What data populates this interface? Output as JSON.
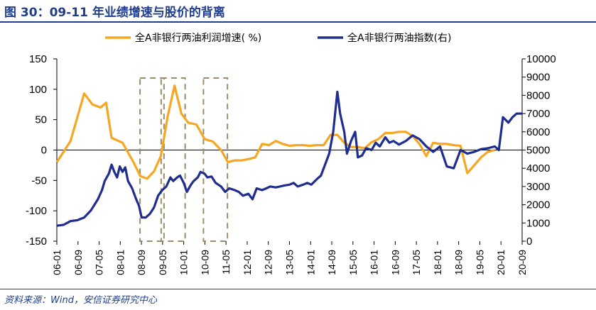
{
  "title": "图 30：09-11 年业绩增速与股价的背离",
  "source": "资料来源：Wind，安信证券研究中心",
  "chart_data": {
    "type": "line",
    "x": [
      "06-01",
      "06-09",
      "07-05",
      "08-01",
      "08-09",
      "09-05",
      "10-01",
      "10-09",
      "11-05",
      "12-01",
      "12-09",
      "13-05",
      "14-01",
      "14-09",
      "15-05",
      "16-01",
      "16-09",
      "17-05",
      "18-01",
      "18-09",
      "19-05",
      "20-01",
      "20-09"
    ],
    "series": [
      {
        "name": "全A非银行两油利润增速( %)",
        "axis": "left",
        "color": "#f5a623",
        "points": [
          [
            0.0,
            -20
          ],
          [
            1.0,
            15
          ],
          [
            2.0,
            93
          ],
          [
            2.6,
            75
          ],
          [
            3.2,
            70
          ],
          [
            3.6,
            78
          ],
          [
            4.0,
            20
          ],
          [
            4.8,
            12
          ],
          [
            5.6,
            -20
          ],
          [
            6.1,
            -43
          ],
          [
            6.6,
            -47
          ],
          [
            7.1,
            -35
          ],
          [
            7.6,
            -10
          ],
          [
            8.1,
            55
          ],
          [
            8.6,
            106
          ],
          [
            9.1,
            60
          ],
          [
            9.6,
            45
          ],
          [
            10.2,
            42
          ],
          [
            10.8,
            18
          ],
          [
            11.4,
            14
          ],
          [
            12.0,
            0
          ],
          [
            12.5,
            -20
          ],
          [
            13.0,
            -17
          ],
          [
            13.5,
            -17
          ],
          [
            14.0,
            -15
          ],
          [
            14.5,
            -12
          ],
          [
            15.0,
            10
          ],
          [
            15.5,
            8
          ],
          [
            16.0,
            15
          ],
          [
            16.5,
            10
          ],
          [
            17.0,
            7
          ],
          [
            17.5,
            8
          ],
          [
            18.0,
            8
          ],
          [
            18.5,
            7
          ],
          [
            19.0,
            8
          ],
          [
            19.5,
            8
          ],
          [
            20.0,
            25
          ],
          [
            20.5,
            25
          ],
          [
            21.0,
            12
          ],
          [
            21.5,
            5
          ],
          [
            22.0,
            5
          ],
          [
            22.5,
            3
          ],
          [
            23.0,
            13
          ],
          [
            23.5,
            18
          ],
          [
            24.0,
            28
          ],
          [
            24.5,
            28
          ],
          [
            25.0,
            30
          ],
          [
            25.5,
            30
          ],
          [
            26.0,
            23
          ],
          [
            26.5,
            10
          ],
          [
            27.0,
            -10
          ],
          [
            27.5,
            12
          ],
          [
            28.0,
            10
          ],
          [
            28.5,
            10
          ],
          [
            29.0,
            8
          ],
          [
            29.5,
            7
          ],
          [
            30.0,
            -38
          ],
          [
            30.5,
            -25
          ],
          [
            31.0,
            -12
          ],
          [
            31.5,
            -3
          ],
          [
            32.0,
            0
          ]
        ]
      },
      {
        "name": "全A非银行两油指数(右)",
        "axis": "right",
        "color": "#1f2d8f",
        "points": [
          [
            0.0,
            850
          ],
          [
            0.5,
            900
          ],
          [
            1.0,
            1100
          ],
          [
            1.5,
            1150
          ],
          [
            2.0,
            1300
          ],
          [
            2.5,
            1700
          ],
          [
            3.0,
            2300
          ],
          [
            3.3,
            2800
          ],
          [
            3.5,
            3300
          ],
          [
            3.8,
            3700
          ],
          [
            4.0,
            4200
          ],
          [
            4.2,
            3800
          ],
          [
            4.4,
            3500
          ],
          [
            4.6,
            4100
          ],
          [
            4.8,
            3800
          ],
          [
            5.0,
            4050
          ],
          [
            5.2,
            3300
          ],
          [
            5.5,
            2900
          ],
          [
            5.8,
            2300
          ],
          [
            6.0,
            1950
          ],
          [
            6.2,
            1300
          ],
          [
            6.5,
            1300
          ],
          [
            6.8,
            1500
          ],
          [
            7.1,
            1850
          ],
          [
            7.4,
            2500
          ],
          [
            7.7,
            2800
          ],
          [
            8.0,
            3000
          ],
          [
            8.3,
            3500
          ],
          [
            8.5,
            3300
          ],
          [
            8.8,
            3500
          ],
          [
            9.0,
            3600
          ],
          [
            9.3,
            3150
          ],
          [
            9.5,
            2700
          ],
          [
            9.8,
            3100
          ],
          [
            10.0,
            3300
          ],
          [
            10.3,
            3500
          ],
          [
            10.5,
            3800
          ],
          [
            10.8,
            3700
          ],
          [
            11.0,
            3500
          ],
          [
            11.3,
            3550
          ],
          [
            11.6,
            3200
          ],
          [
            12.0,
            3000
          ],
          [
            12.3,
            2700
          ],
          [
            12.6,
            2900
          ],
          [
            13.0,
            2800
          ],
          [
            13.3,
            2700
          ],
          [
            13.6,
            2500
          ],
          [
            14.0,
            2600
          ],
          [
            14.3,
            2300
          ],
          [
            14.6,
            2900
          ],
          [
            15.0,
            2800
          ],
          [
            15.3,
            2900
          ],
          [
            15.6,
            3000
          ],
          [
            16.0,
            2950
          ],
          [
            16.3,
            3000
          ],
          [
            16.6,
            3050
          ],
          [
            17.0,
            3100
          ],
          [
            17.3,
            3200
          ],
          [
            17.6,
            3000
          ],
          [
            18.0,
            3100
          ],
          [
            18.3,
            3200
          ],
          [
            18.6,
            3100
          ],
          [
            19.0,
            3400
          ],
          [
            19.3,
            3600
          ],
          [
            19.6,
            4200
          ],
          [
            19.9,
            4800
          ],
          [
            20.2,
            6000
          ],
          [
            20.5,
            8200
          ],
          [
            20.7,
            7000
          ],
          [
            21.0,
            6000
          ],
          [
            21.2,
            4800
          ],
          [
            21.5,
            5500
          ],
          [
            21.8,
            6000
          ],
          [
            22.0,
            4600
          ],
          [
            22.3,
            4700
          ],
          [
            22.6,
            5100
          ],
          [
            23.0,
            5000
          ],
          [
            23.3,
            5400
          ],
          [
            23.6,
            5200
          ],
          [
            24.0,
            5700
          ],
          [
            24.3,
            5400
          ],
          [
            24.6,
            5500
          ],
          [
            25.0,
            5300
          ],
          [
            25.5,
            5500
          ],
          [
            26.0,
            5800
          ],
          [
            26.5,
            5600
          ],
          [
            27.0,
            5200
          ],
          [
            27.5,
            4900
          ],
          [
            28.0,
            5200
          ],
          [
            28.5,
            4100
          ],
          [
            29.0,
            4000
          ],
          [
            29.5,
            5000
          ],
          [
            30.0,
            4800
          ],
          [
            30.5,
            4900
          ],
          [
            31.0,
            5050
          ],
          [
            31.5,
            5100
          ],
          [
            32.0,
            5200
          ],
          [
            32.3,
            5000
          ],
          [
            32.6,
            6800
          ],
          [
            33.0,
            6500
          ],
          [
            33.3,
            6800
          ],
          [
            33.6,
            7000
          ],
          [
            34.0,
            7000
          ]
        ]
      }
    ],
    "yleft_range": [
      -150,
      150
    ],
    "yleft_ticks": [
      "150",
      "100",
      "50",
      "0",
      "-50",
      "-100",
      "-150"
    ],
    "yright_range": [
      0,
      10000
    ],
    "yright_ticks": [
      "10000",
      "9000",
      "8000",
      "7000",
      "6000",
      "5000",
      "4000",
      "3000",
      "2000",
      "1000",
      "0"
    ],
    "highlight_boxes": [
      {
        "from": "08-09",
        "to": "09-05"
      },
      {
        "from": "09-05",
        "to": "10-01"
      },
      {
        "from": "10-09",
        "to": "11-05"
      }
    ],
    "legend_position": "top"
  }
}
